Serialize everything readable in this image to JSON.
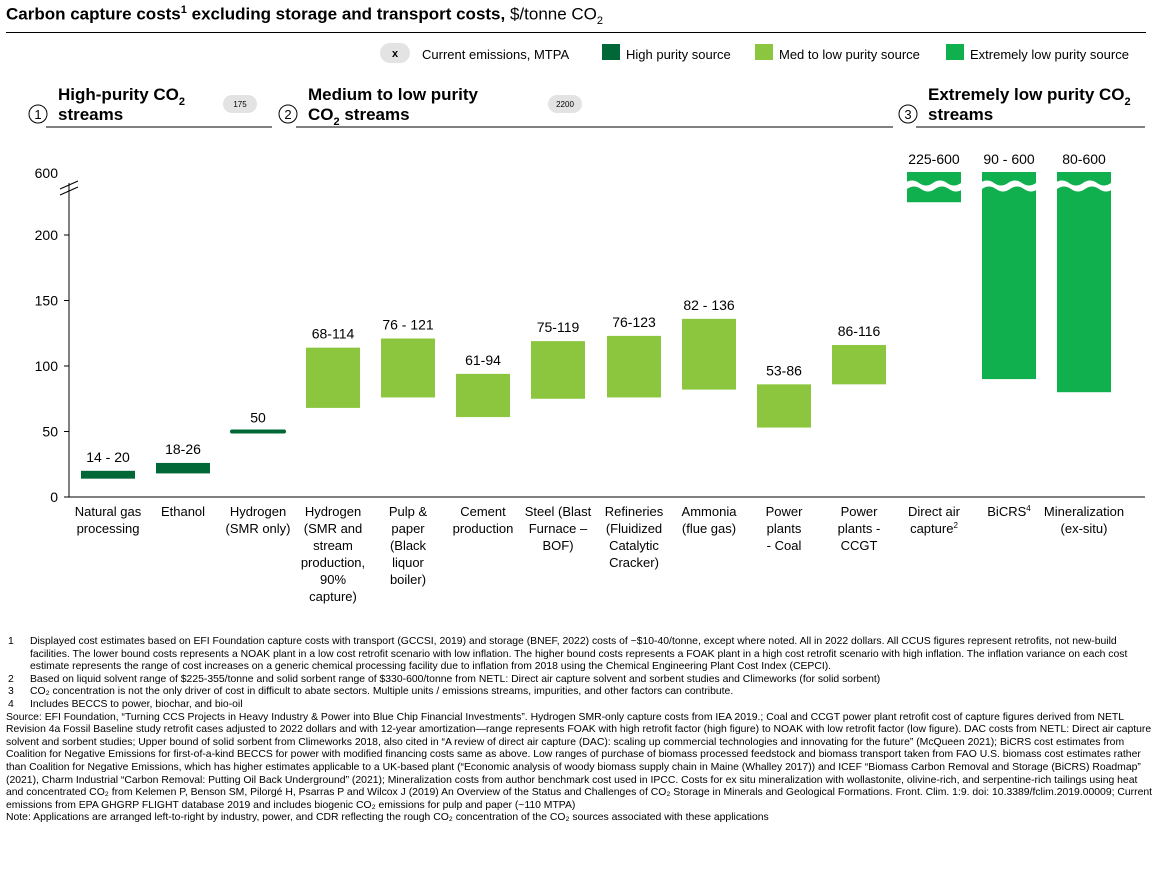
{
  "title": {
    "main": "Carbon capture costs",
    "sup": "1",
    "rest": " excluding storage and transport costs,",
    "unit": " $/tonne CO",
    "unit_sub": "2"
  },
  "legend": {
    "marker_label": "x",
    "current_emissions": "Current emissions, MTPA",
    "high": "High purity source",
    "med": "Med to low purity source",
    "extreme": "Extremely low purity source"
  },
  "colors": {
    "high": "#006837",
    "med": "#8cc63f",
    "extreme": "#10b04f",
    "badge": "#e3e3e3",
    "axis": "#000000"
  },
  "sections": [
    {
      "num": "1",
      "line1": "High-purity CO",
      "line1_sub": "2",
      "line2": "streams",
      "emissions": "175"
    },
    {
      "num": "2",
      "line1": "Medium to low purity",
      "line1_sub": "",
      "line2": "CO",
      "line2_sub": "2",
      "line2_rest": " streams",
      "emissions": "2200"
    },
    {
      "num": "3",
      "line1": "Extremely low purity CO",
      "line1_sub": "2",
      "line2": "streams",
      "emissions": ""
    }
  ],
  "chart_data": {
    "type": "bar",
    "subtype": "floating-range",
    "ylim": [
      0,
      200
    ],
    "y_break_label": "600",
    "yticks": [
      0,
      50,
      100,
      150,
      200
    ],
    "grid": false,
    "categories": [
      {
        "label": [
          "Natural gas",
          "processing"
        ],
        "range": [
          14,
          20
        ],
        "range_label": "14 - 20",
        "group": "high"
      },
      {
        "label": [
          "Ethanol"
        ],
        "range": [
          18,
          26
        ],
        "range_label": "18-26",
        "group": "high"
      },
      {
        "label": [
          "Hydrogen",
          "(SMR only)"
        ],
        "range": [
          50,
          50
        ],
        "range_label": "50",
        "group": "high"
      },
      {
        "label": [
          "Hydrogen",
          "(SMR and",
          "stream",
          "production,",
          "90%",
          "capture)"
        ],
        "range": [
          68,
          114
        ],
        "range_label": "68-114",
        "group": "med"
      },
      {
        "label": [
          "Pulp &",
          "paper",
          "(Black",
          "liquor",
          "boiler)"
        ],
        "range": [
          76,
          121
        ],
        "range_label": "76 - 121",
        "group": "med"
      },
      {
        "label": [
          "Cement",
          "production"
        ],
        "range": [
          61,
          94
        ],
        "range_label": "61-94",
        "group": "med"
      },
      {
        "label": [
          "Steel (Blast",
          "Furnace –",
          "BOF)"
        ],
        "range": [
          75,
          119
        ],
        "range_label": "75-119",
        "group": "med"
      },
      {
        "label": [
          "Refineries",
          "(Fluidized",
          "Catalytic",
          "Cracker)"
        ],
        "range": [
          76,
          123
        ],
        "range_label": "76-123",
        "group": "med"
      },
      {
        "label": [
          "Ammonia",
          "(flue gas)"
        ],
        "range": [
          82,
          136
        ],
        "range_label": "82 - 136",
        "group": "med"
      },
      {
        "label": [
          "Power",
          "plants",
          "- Coal"
        ],
        "range": [
          53,
          86
        ],
        "range_label": "53-86",
        "group": "med"
      },
      {
        "label": [
          "Power",
          "plants -",
          "CCGT"
        ],
        "range": [
          86,
          116
        ],
        "range_label": "86-116",
        "group": "med"
      },
      {
        "label": [
          "Direct air",
          "capture"
        ],
        "label_sup": "2",
        "range": [
          225,
          600
        ],
        "range_label": "225-600",
        "group": "extreme"
      },
      {
        "label": [
          "BiCRS"
        ],
        "label_sup": "4",
        "range": [
          90,
          600
        ],
        "range_label": "90 - 600",
        "group": "extreme"
      },
      {
        "label": [
          "Mineralization",
          "(ex-situ)"
        ],
        "range": [
          80,
          600
        ],
        "range_label": "80-600",
        "group": "extreme"
      }
    ]
  },
  "footnotes": [
    {
      "num": "1",
      "text": "Displayed cost estimates based on EFI Foundation capture costs with transport (GCCSI, 2019) and storage (BNEF, 2022) costs of ~$10-40/tonne, except where noted. All in 2022 dollars. All CCUS figures represent retrofits, not new-build facilities. The lower bound costs represents a NOAK plant in a low cost retrofit scenario with low inflation. The higher bound costs represents a FOAK plant in a high cost retrofit scenario with high inflation. The inflation variance on each cost estimate represents the range of cost increases on a generic chemical processing facility due to inflation from 2018 using the Chemical Engineering Plant Cost Index (CEPCI)."
    },
    {
      "num": "2",
      "text": "Based on liquid solvent range of $225-355/tonne and solid sorbent range of $330-600/tonne from NETL: Direct air capture solvent and sorbent studies and Climeworks (for solid sorbent)"
    },
    {
      "num": "3",
      "text": "CO₂ concentration is not the only driver of cost in difficult to abate sectors. Multiple units / emissions streams, impurities, and other factors can contribute."
    },
    {
      "num": "4",
      "text": "Includes BECCS to power, biochar, and bio-oil"
    }
  ],
  "source": "Source: EFI Foundation, “Turning CCS Projects in Heavy Industry & Power into Blue Chip Financial Investments”. Hydrogen SMR-only capture costs from IEA 2019.; Coal and CCGT power plant retrofit cost of capture figures derived from NETL Revision 4a Fossil Baseline study retrofit cases adjusted to 2022 dollars and with 12-year amortization—range represents FOAK with high retrofit factor (high figure) to NOAK with low retrofit factor (low figure). DAC costs from NETL: Direct air capture solvent and sorbent studies; Upper bound of solid sorbent from Climeworks 2018, also cited in “A review of direct air capture (DAC): scaling up commercial technologies and innovating for the future” (McQueen 2021); BiCRS cost estimates from Coalition for Negative Emissions for first-of-a-kind BECCS for power with modified financing costs same as above. Low ranges of purchase of biomass processed feedstock and biomass transport taken from FAO U.S. biomass cost estimates rather than Coalition for Negative Emissions, which has higher estimates applicable to a UK-based plant (“Economic analysis of woody biomass supply chain in Maine (Whalley 2017)) and ICEF “Biomass Carbon Removal and Storage (BiCRS) Roadmap” (2021), Charm Industrial “Carbon Removal: Putting Oil Back Underground” (2021); Mineralization costs from author benchmark cost used in IPCC. Costs for ex situ mineralization with wollastonite, olivine-rich, and serpentine-rich tailings using heat and concentrated CO₂ from Kelemen P, Benson SM, Pilorgé H, Psarras P and Wilcox J (2019) An Overview of the Status and Challenges of CO₂ Storage in Minerals and Geological Formations. Front. Clim. 1:9. doi: 10.3389/fclim.2019.00009; Current emissions from EPA GHGRP FLIGHT database 2019 and includes biogenic CO₂ emissions for pulp and paper (~110 MTPA)",
  "note": "Note: Applications are arranged left-to-right by industry, power, and CDR reflecting the rough CO₂ concentration of the CO₂  sources associated with these applications"
}
